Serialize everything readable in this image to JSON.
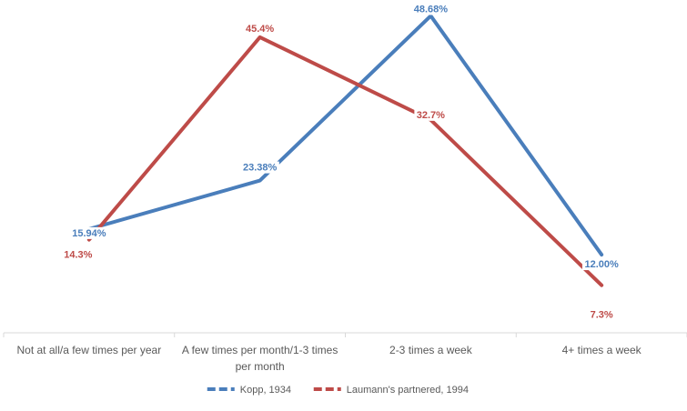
{
  "chart_data": {
    "type": "line",
    "title": "",
    "xlabel": "",
    "ylabel": "",
    "categories": [
      [
        "Not at all/a few times per year"
      ],
      [
        "A few times per month/1-3 times",
        "per month"
      ],
      [
        "2-3 times a week"
      ],
      [
        "4+ times a week"
      ]
    ],
    "series": [
      {
        "name": "Kopp, 1934",
        "color": "#4a7ebb",
        "values": [
          15.94,
          23.38,
          48.68,
          12.0
        ],
        "labels": [
          "15.94%",
          "23.38%",
          "48.68%",
          "12.00%"
        ]
      },
      {
        "name": "Laumann's partnered, 1994",
        "color": "#be4b48",
        "values": [
          14.3,
          45.4,
          32.7,
          7.3
        ],
        "labels": [
          "14.3%",
          "45.4%",
          "32.7%",
          "7.3%"
        ]
      }
    ],
    "ylim": [
      0,
      50
    ],
    "grid": false,
    "legend_position": "bottom"
  }
}
